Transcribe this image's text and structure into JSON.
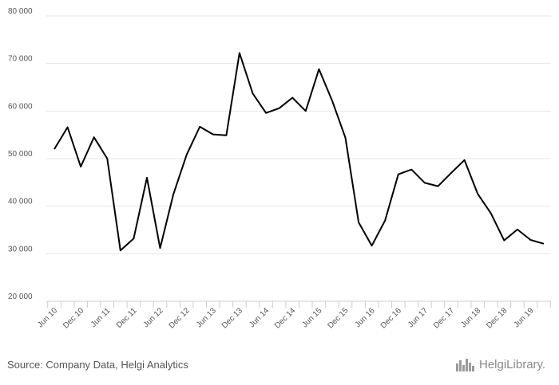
{
  "source_text": "Source: Company Data, Helgi Analytics",
  "logo": {
    "text": "HelgiLibrary."
  },
  "colors": {
    "line": "#000000",
    "grid": "#e6e6e6",
    "axis": "#cccccc",
    "text": "#555555"
  },
  "chart_data": {
    "type": "line",
    "title": "",
    "xlabel": "",
    "ylabel": "",
    "ylim": [
      20000,
      80000
    ],
    "yticks": [
      20000,
      30000,
      40000,
      50000,
      60000,
      70000,
      80000
    ],
    "ytick_labels": [
      "20 000",
      "30 000",
      "40 000",
      "50 000",
      "60 000",
      "70 000",
      "80 000"
    ],
    "grid": true,
    "legend": "none",
    "x": [
      "Jun 10",
      "Sep 10",
      "Dec 10",
      "Mar 11",
      "Jun 11",
      "Sep 11",
      "Dec 11",
      "Mar 12",
      "Jun 12",
      "Sep 12",
      "Dec 12",
      "Mar 13",
      "Jun 13",
      "Sep 13",
      "Dec 13",
      "Mar 14",
      "Jun 14",
      "Sep 14",
      "Dec 14",
      "Mar 15",
      "Jun 15",
      "Sep 15",
      "Dec 15",
      "Mar 16",
      "Jun 16",
      "Sep 16",
      "Dec 16",
      "Mar 17",
      "Jun 17",
      "Sep 17",
      "Dec 17",
      "Mar 18",
      "Jun 18",
      "Sep 18",
      "Dec 18",
      "Mar 19",
      "Jun 19",
      "Sep 19"
    ],
    "xtick_labels": [
      "Jun 10",
      "Dec 10",
      "Jun 11",
      "Dec 11",
      "Jun 12",
      "Dec 12",
      "Jun 13",
      "Dec 13",
      "Jun 14",
      "Dec 14",
      "Jun 15",
      "Dec 15",
      "Jun 16",
      "Dec 16",
      "Jun 17",
      "Dec 17",
      "Jun 18",
      "Dec 18",
      "Jun 19"
    ],
    "series": [
      {
        "values": [
          52000,
          56600,
          48300,
          54500,
          50000,
          30700,
          33200,
          46000,
          31200,
          42500,
          50800,
          56700,
          55100,
          54900,
          72200,
          63700,
          59600,
          60600,
          62800,
          60000,
          68800,
          62200,
          54400,
          36600,
          31700,
          37000,
          46700,
          47700,
          44900,
          44200,
          47000,
          49700,
          42600,
          38500,
          32800,
          35100,
          32900,
          32100
        ]
      }
    ]
  }
}
